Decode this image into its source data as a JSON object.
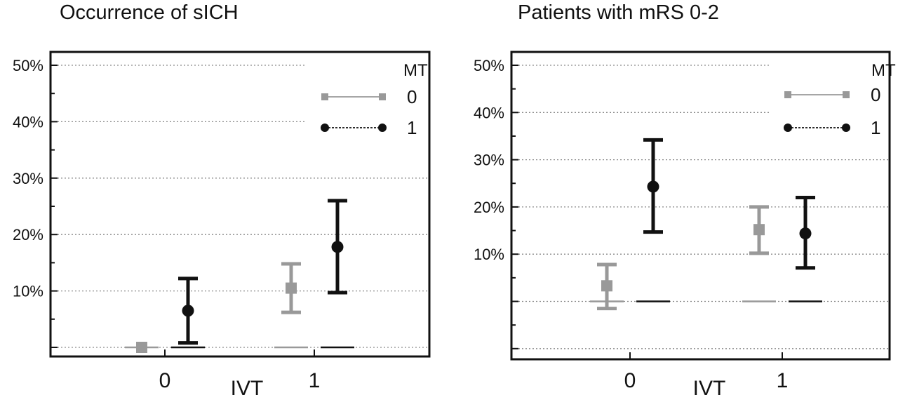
{
  "chart_data": [
    {
      "type": "scatter",
      "title": "Occurrence of sICH",
      "xlabel": "IVT",
      "ylabel": "",
      "categories": [
        "0",
        "1"
      ],
      "y_ticks": [
        "10%",
        "20%",
        "30%",
        "40%",
        "50%"
      ],
      "ylim": [
        -1,
        51.5
      ],
      "grid": true,
      "legend": {
        "title": "MT",
        "position": "top-right",
        "entries": [
          "0",
          "1"
        ]
      },
      "series": [
        {
          "name": "0",
          "color": "#999999",
          "marker": "square",
          "line": "solid",
          "points": [
            {
              "x": "0",
              "y": 0.0,
              "lower": 0.0,
              "upper": 0.0
            },
            {
              "x": "1",
              "y": 10.5,
              "lower": 6.2,
              "upper": 14.8
            }
          ]
        },
        {
          "name": "1",
          "color": "#111111",
          "marker": "circle",
          "line": "dashed",
          "points": [
            {
              "x": "0",
              "y": 6.5,
              "lower": 0.8,
              "upper": 12.2
            },
            {
              "x": "1",
              "y": 17.8,
              "lower": 9.7,
              "upper": 26.0
            }
          ]
        }
      ]
    },
    {
      "type": "scatter",
      "title": "Patients with mRS 0-2",
      "xlabel": "IVT",
      "ylabel": "",
      "categories": [
        "0",
        "1"
      ],
      "y_ticks": [
        "10%",
        "20%",
        "30%",
        "40%",
        "50%"
      ],
      "ylim": [
        -11.5,
        52.5
      ],
      "grid": true,
      "legend": {
        "title": "MT",
        "position": "top-right",
        "entries": [
          "0",
          "1"
        ]
      },
      "series": [
        {
          "name": "0",
          "color": "#999999",
          "marker": "square",
          "line": "solid",
          "points": [
            {
              "x": "0",
              "y": 3.3,
              "lower": -1.5,
              "upper": 7.8
            },
            {
              "x": "1",
              "y": 15.2,
              "lower": 10.2,
              "upper": 20.0
            }
          ]
        },
        {
          "name": "1",
          "color": "#111111",
          "marker": "circle",
          "line": "dashed",
          "points": [
            {
              "x": "0",
              "y": 24.3,
              "lower": 14.7,
              "upper": 34.2
            },
            {
              "x": "1",
              "y": 14.4,
              "lower": 7.1,
              "upper": 22.0
            }
          ]
        }
      ]
    }
  ]
}
